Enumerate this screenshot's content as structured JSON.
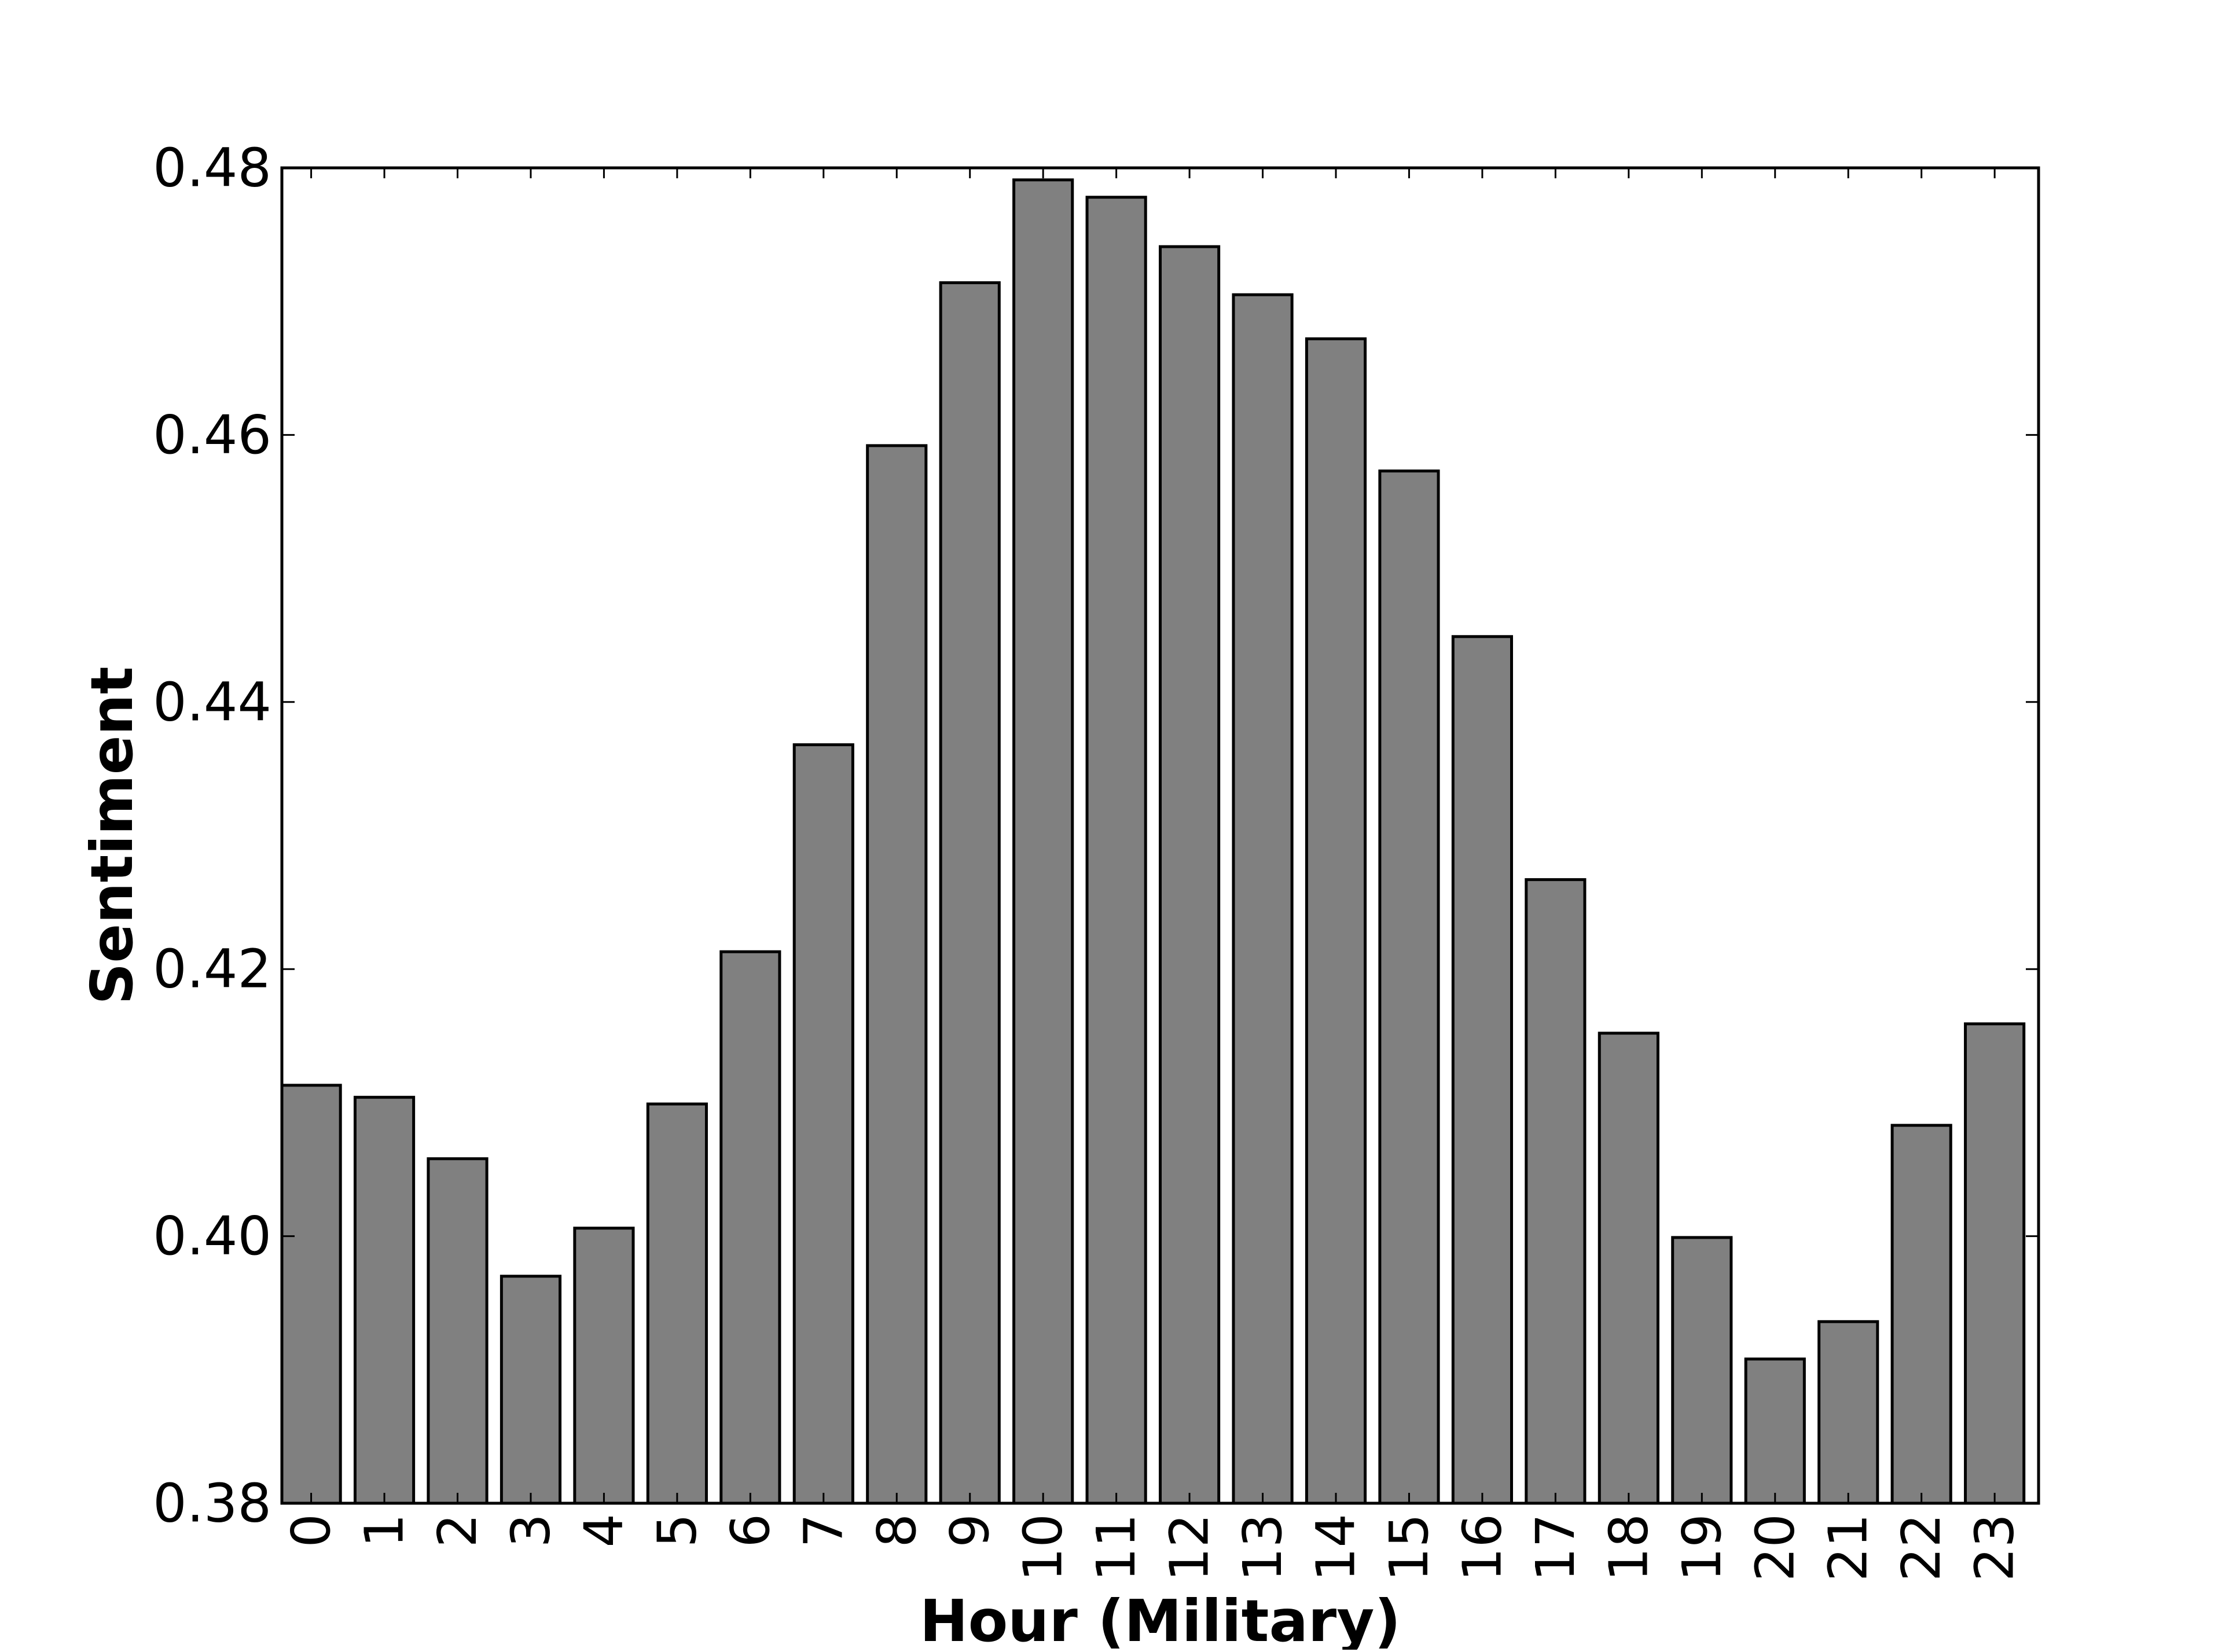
{
  "chart_data": {
    "type": "bar",
    "title": "",
    "xlabel": "Hour (Military)",
    "ylabel": "Sentiment",
    "categories": [
      "0",
      "1",
      "2",
      "3",
      "4",
      "5",
      "6",
      "7",
      "8",
      "9",
      "10",
      "11",
      "12",
      "13",
      "14",
      "15",
      "16",
      "17",
      "18",
      "19",
      "20",
      "21",
      "22",
      "23"
    ],
    "values": [
      0.4113,
      0.4104,
      0.4058,
      0.397,
      0.4006,
      0.4099,
      0.4213,
      0.4368,
      0.4592,
      0.4714,
      0.4791,
      0.4778,
      0.4741,
      0.4705,
      0.4672,
      0.4573,
      0.4449,
      0.4267,
      0.4152,
      0.3999,
      0.3908,
      0.3936,
      0.4083,
      0.4159
    ],
    "ylim": [
      0.38,
      0.48
    ],
    "yticks": [
      0.38,
      0.4,
      0.42,
      0.44,
      0.46,
      0.48
    ],
    "ytick_labels": [
      "0.38",
      "0.40",
      "0.42",
      "0.44",
      "0.46",
      "0.48"
    ],
    "grid": false,
    "legend": "none",
    "colors": {
      "bar_fill": "#808080",
      "bar_edge": "#000000",
      "axes": "#000000",
      "background": "#ffffff"
    }
  }
}
